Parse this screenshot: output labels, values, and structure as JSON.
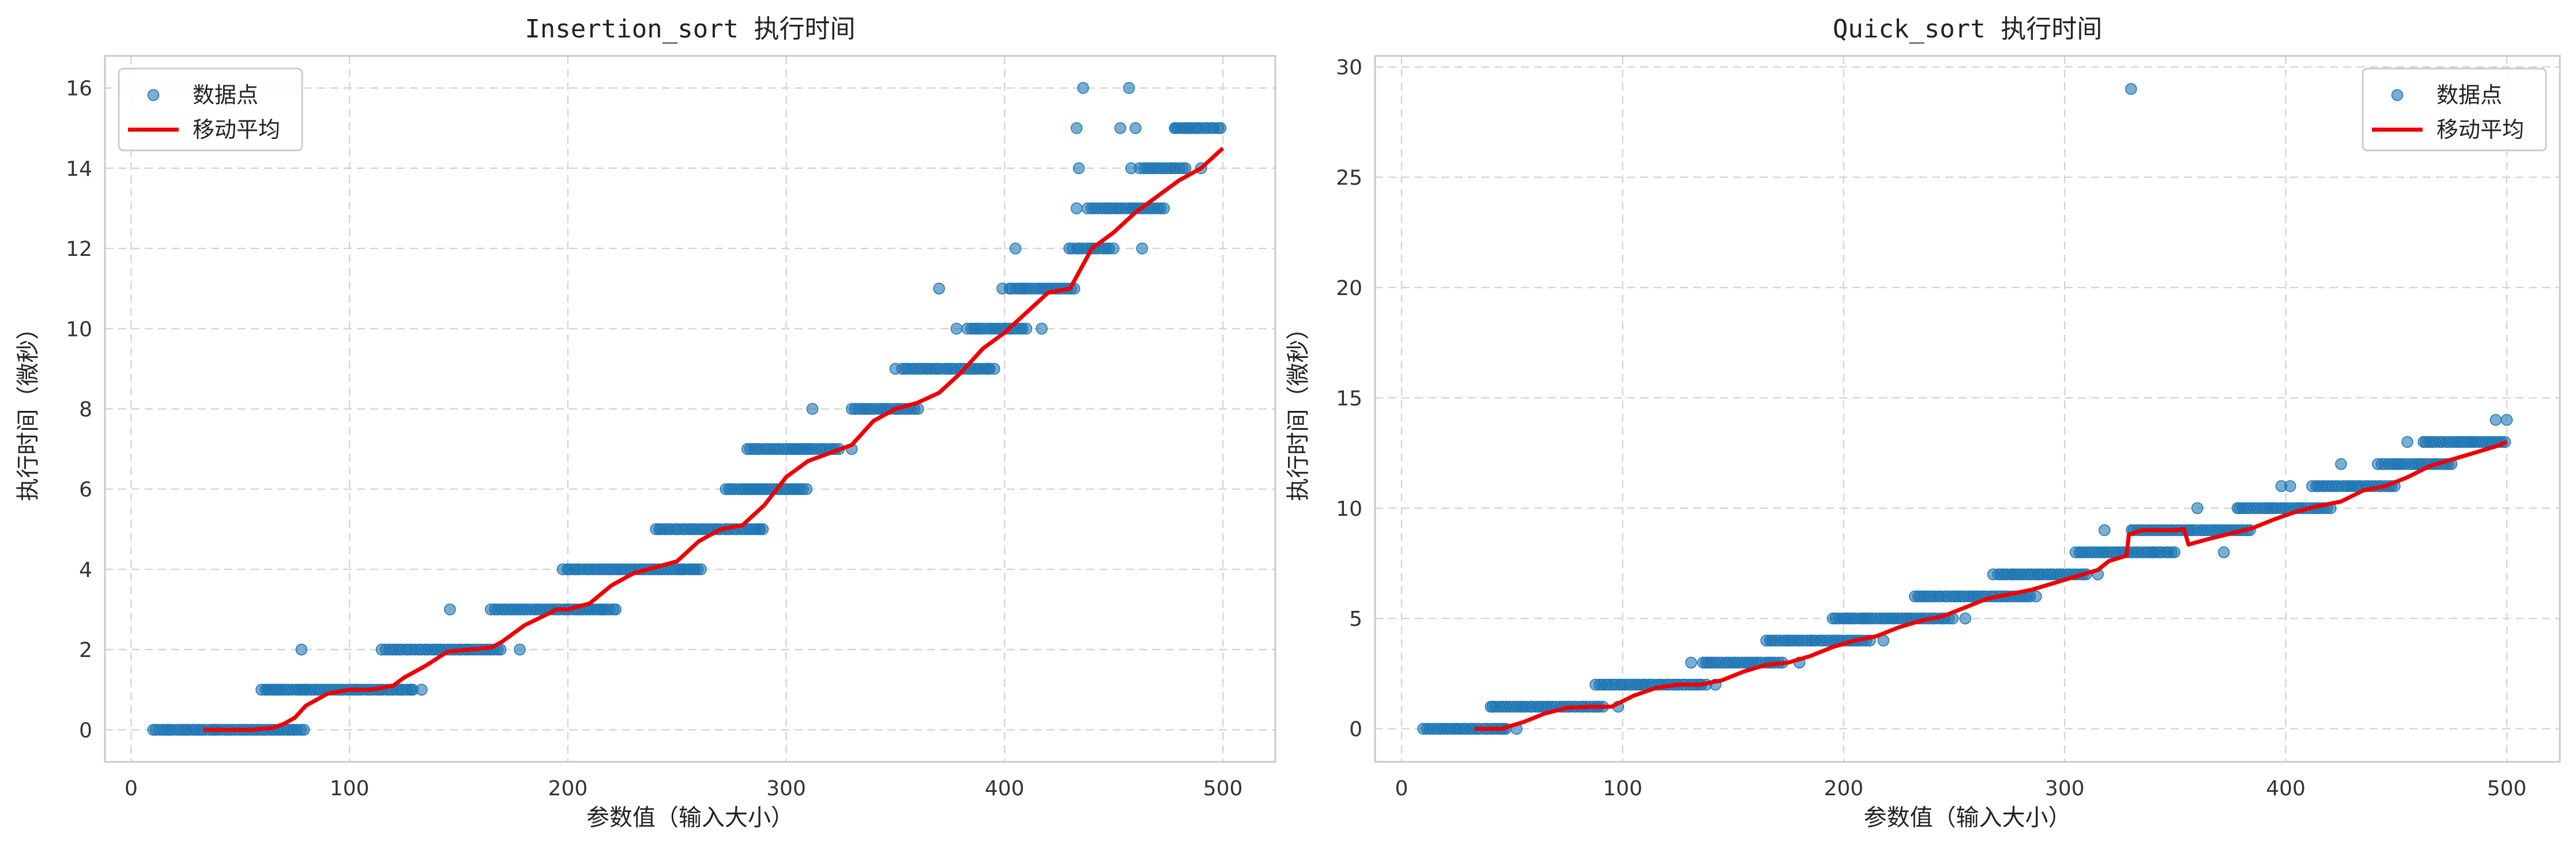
{
  "colors": {
    "points": "#1f77b4",
    "average": "#ee0000",
    "grid": "#d5d5d5"
  },
  "chart_data": [
    {
      "type": "scatter",
      "title": "Insertion_sort 执行时间",
      "xlabel": "参数值（输入大小）",
      "ylabel": "执行时间（微秒）",
      "xlim": [
        -12,
        524
      ],
      "ylim": [
        -0.8,
        16.8
      ],
      "xticks": [
        0,
        100,
        200,
        300,
        400,
        500
      ],
      "yticks": [
        0,
        2,
        4,
        6,
        8,
        10,
        12,
        14,
        16
      ],
      "grid": true,
      "legend": "top-left",
      "series": [
        {
          "name": "数据点",
          "kind": "scatter",
          "segments": [
            [
              10,
              80,
              0
            ],
            [
              60,
              80,
              1
            ],
            [
              78,
              130,
              1
            ],
            [
              115,
              170,
              2
            ],
            [
              165,
              222,
              3
            ],
            [
              198,
              262,
              4
            ],
            [
              240,
              290,
              5
            ],
            [
              272,
              310,
              6
            ],
            [
              282,
              325,
              7
            ],
            [
              330,
              360,
              8
            ],
            [
              353,
              395,
              9
            ],
            [
              383,
              410,
              10
            ],
            [
              402,
              432,
              11
            ],
            [
              430,
              450,
              12
            ],
            [
              440,
              472,
              13
            ],
            [
              462,
              484,
              14
            ],
            [
              478,
              500,
              15
            ]
          ],
          "extra": [
            [
              38,
              0
            ],
            [
              63,
              1
            ],
            [
              67,
              1
            ],
            [
              78,
              2
            ],
            [
              128,
              1
            ],
            [
              133,
              1
            ],
            [
              146,
              3
            ],
            [
              178,
              2
            ],
            [
              210,
              3
            ],
            [
              216,
              3
            ],
            [
              252,
              4
            ],
            [
              258,
              4
            ],
            [
              288,
              5
            ],
            [
              285,
              6
            ],
            [
              303,
              6
            ],
            [
              305,
              7
            ],
            [
              330,
              7
            ],
            [
              312,
              8
            ],
            [
              350,
              9
            ],
            [
              370,
              11
            ],
            [
              378,
              10
            ],
            [
              393,
              9
            ],
            [
              399,
              11
            ],
            [
              405,
              12
            ],
            [
              417,
              10
            ],
            [
              433,
              15
            ],
            [
              434,
              14
            ],
            [
              438,
              13
            ],
            [
              433,
              13
            ],
            [
              436,
              16
            ],
            [
              457,
              16
            ],
            [
              453,
              15
            ],
            [
              458,
              14
            ],
            [
              460,
              15
            ],
            [
              459,
              13
            ],
            [
              463,
              12
            ],
            [
              473,
              13
            ],
            [
              478,
              15
            ],
            [
              484,
              15
            ],
            [
              490,
              14
            ]
          ]
        },
        {
          "name": "移动平均",
          "kind": "line",
          "x": [
            33,
            55,
            65,
            70,
            75,
            80,
            90,
            100,
            110,
            120,
            125,
            135,
            145,
            155,
            165,
            170,
            180,
            195,
            200,
            210,
            220,
            230,
            240,
            250,
            260,
            270,
            280,
            290,
            300,
            310,
            320,
            330,
            340,
            350,
            360,
            370,
            380,
            390,
            400,
            410,
            420,
            430,
            440,
            450,
            460,
            470,
            480,
            490,
            500
          ],
          "y": [
            0,
            0,
            0.05,
            0.15,
            0.3,
            0.6,
            0.9,
            1.0,
            1.0,
            1.1,
            1.3,
            1.6,
            1.95,
            2.0,
            2.05,
            2.2,
            2.6,
            3.0,
            3.0,
            3.15,
            3.6,
            3.9,
            4.05,
            4.2,
            4.7,
            5.0,
            5.1,
            5.6,
            6.3,
            6.7,
            6.9,
            7.1,
            7.7,
            8.0,
            8.15,
            8.4,
            8.9,
            9.5,
            9.9,
            10.4,
            10.9,
            11.0,
            12.0,
            12.4,
            12.9,
            13.3,
            13.7,
            14.0,
            14.5
          ]
        }
      ]
    },
    {
      "type": "scatter",
      "title": "Quick_sort 执行时间",
      "xlabel": "参数值（输入大小）",
      "ylabel": "执行时间（微秒）",
      "xlim": [
        -12,
        524
      ],
      "ylim": [
        -1.5,
        30.5
      ],
      "xticks": [
        0,
        100,
        200,
        300,
        400,
        500
      ],
      "yticks": [
        0,
        5,
        10,
        15,
        20,
        25,
        30
      ],
      "grid": true,
      "legend": "top-right",
      "series": [
        {
          "name": "数据点",
          "kind": "scatter",
          "segments": [
            [
              10,
              48,
              0
            ],
            [
              40,
              92,
              1
            ],
            [
              88,
              138,
              2
            ],
            [
              136,
              172,
              3
            ],
            [
              165,
              212,
              4
            ],
            [
              195,
              250,
              5
            ],
            [
              232,
              285,
              6
            ],
            [
              268,
              310,
              7
            ],
            [
              305,
              350,
              8
            ],
            [
              330,
              385,
              9
            ],
            [
              378,
              420,
              10
            ],
            [
              412,
              450,
              11
            ],
            [
              442,
              475,
              12
            ],
            [
              462,
              500,
              13
            ]
          ],
          "extra": [
            [
              45,
              0
            ],
            [
              52,
              0
            ],
            [
              98,
              1
            ],
            [
              142,
              2
            ],
            [
              131,
              3
            ],
            [
              180,
              3
            ],
            [
              218,
              4
            ],
            [
              200,
              5
            ],
            [
              210,
              5
            ],
            [
              255,
              5
            ],
            [
              287,
              6
            ],
            [
              276,
              7
            ],
            [
              315,
              7
            ],
            [
              318,
              9
            ],
            [
              330,
              29
            ],
            [
              340,
              8
            ],
            [
              360,
              10
            ],
            [
              372,
              8
            ],
            [
              398,
              11
            ],
            [
              402,
              11
            ],
            [
              425,
              12
            ],
            [
              430,
              11
            ],
            [
              455,
              13
            ],
            [
              484,
              13
            ],
            [
              495,
              14
            ],
            [
              500,
              14
            ]
          ]
        },
        {
          "name": "移动平均",
          "kind": "line",
          "x": [
            33,
            45,
            55,
            65,
            75,
            85,
            95,
            105,
            115,
            125,
            135,
            145,
            155,
            165,
            175,
            185,
            195,
            205,
            215,
            225,
            235,
            245,
            255,
            265,
            275,
            285,
            295,
            305,
            315,
            320,
            328,
            329,
            335,
            340,
            350,
            354,
            356,
            365,
            375,
            385,
            395,
            405,
            415,
            425,
            435,
            445,
            455,
            465,
            475,
            485,
            495,
            500
          ],
          "y": [
            0,
            0,
            0.3,
            0.7,
            0.95,
            1.0,
            1.0,
            1.5,
            1.85,
            2.0,
            2.0,
            2.2,
            2.6,
            2.9,
            3.0,
            3.3,
            3.7,
            4.0,
            4.2,
            4.6,
            4.9,
            5.1,
            5.5,
            5.9,
            6.1,
            6.3,
            6.6,
            6.9,
            7.2,
            7.6,
            7.85,
            8.8,
            9.0,
            9.0,
            9.0,
            9.05,
            8.35,
            8.6,
            8.85,
            9.1,
            9.5,
            9.85,
            10.1,
            10.3,
            10.8,
            11.0,
            11.4,
            11.9,
            12.2,
            12.5,
            12.8,
            13.0
          ]
        }
      ]
    }
  ]
}
